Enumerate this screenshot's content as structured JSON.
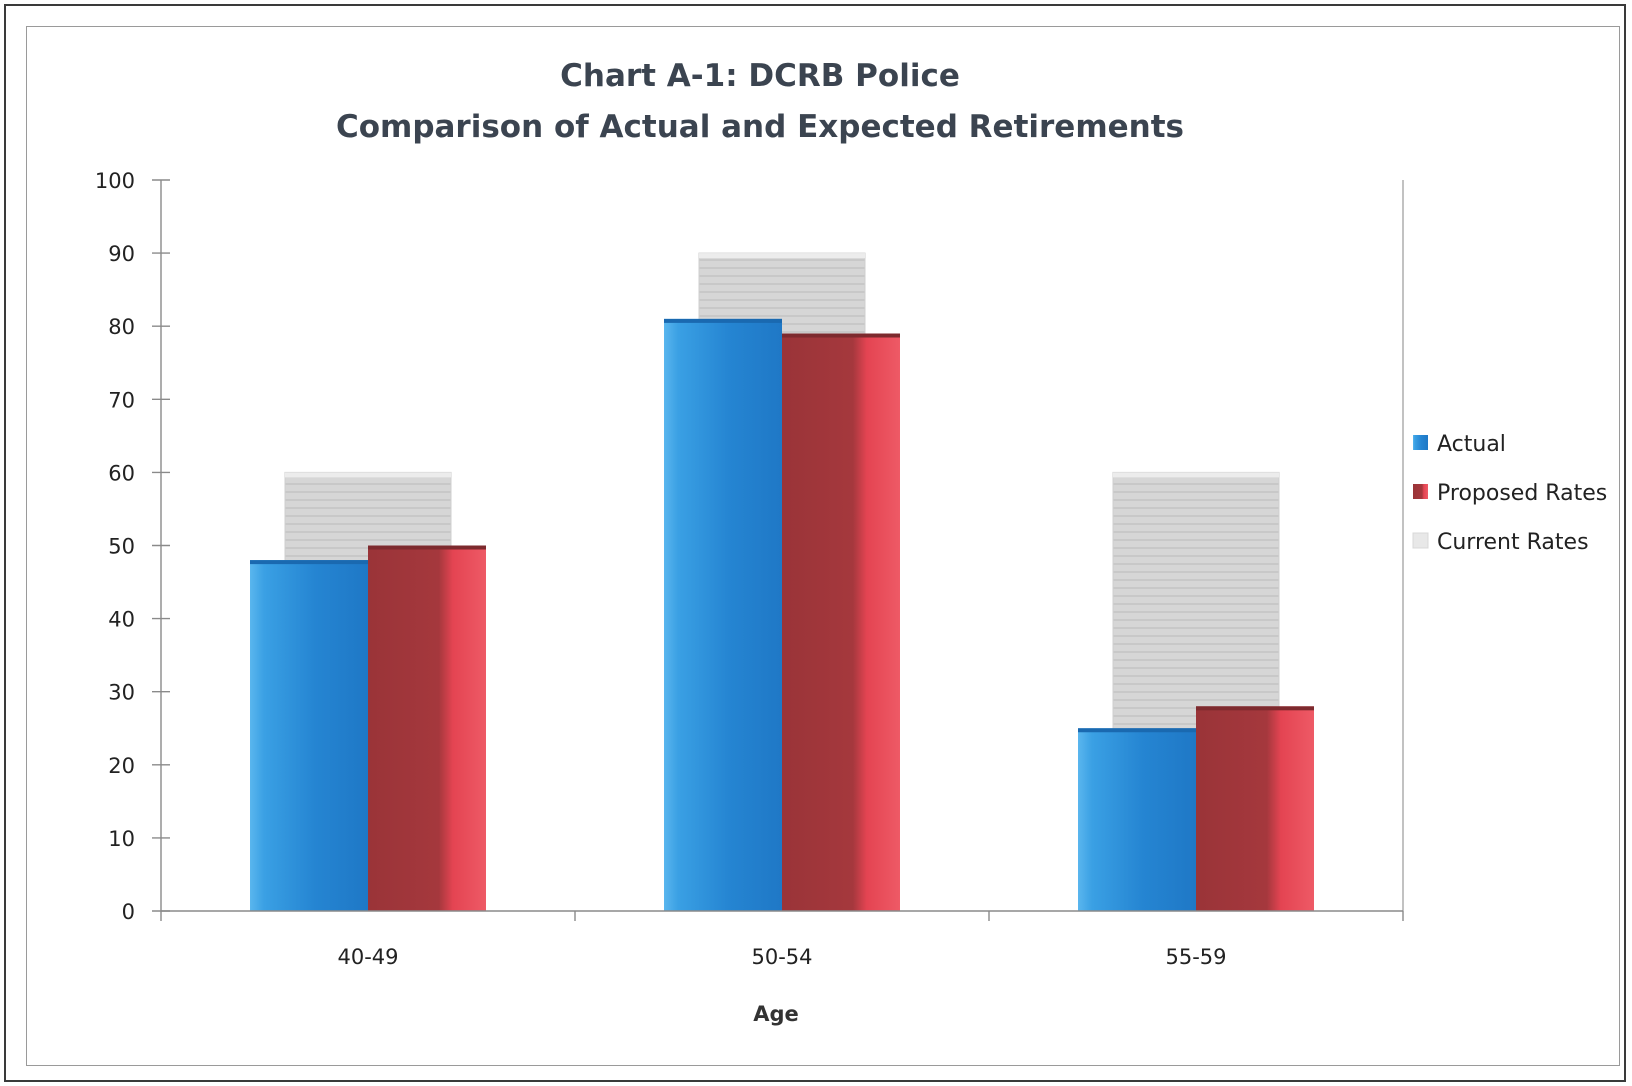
{
  "chart_data": {
    "type": "bar",
    "title_line1": "Chart A-1:  DCRB Police",
    "title_line2": "Comparison of Actual and Expected Retirements",
    "xlabel": "Age",
    "ylabel": "",
    "ylim": [
      0,
      100
    ],
    "yticks": [
      "0",
      "10",
      "20",
      "30",
      "40",
      "50",
      "60",
      "70",
      "80",
      "90",
      "100"
    ],
    "categories": [
      "40-49",
      "50-54",
      "55-59"
    ],
    "series": [
      {
        "name": "Actual",
        "values": [
          48,
          81,
          25
        ],
        "color": "#2b8fd8"
      },
      {
        "name": "Proposed Rates",
        "values": [
          50,
          79,
          28
        ],
        "color": "#b8343c"
      },
      {
        "name": "Current Rates",
        "values": [
          60,
          90,
          60
        ],
        "color": "#d2d2d2"
      }
    ],
    "legend_position": "right",
    "grid": false
  }
}
